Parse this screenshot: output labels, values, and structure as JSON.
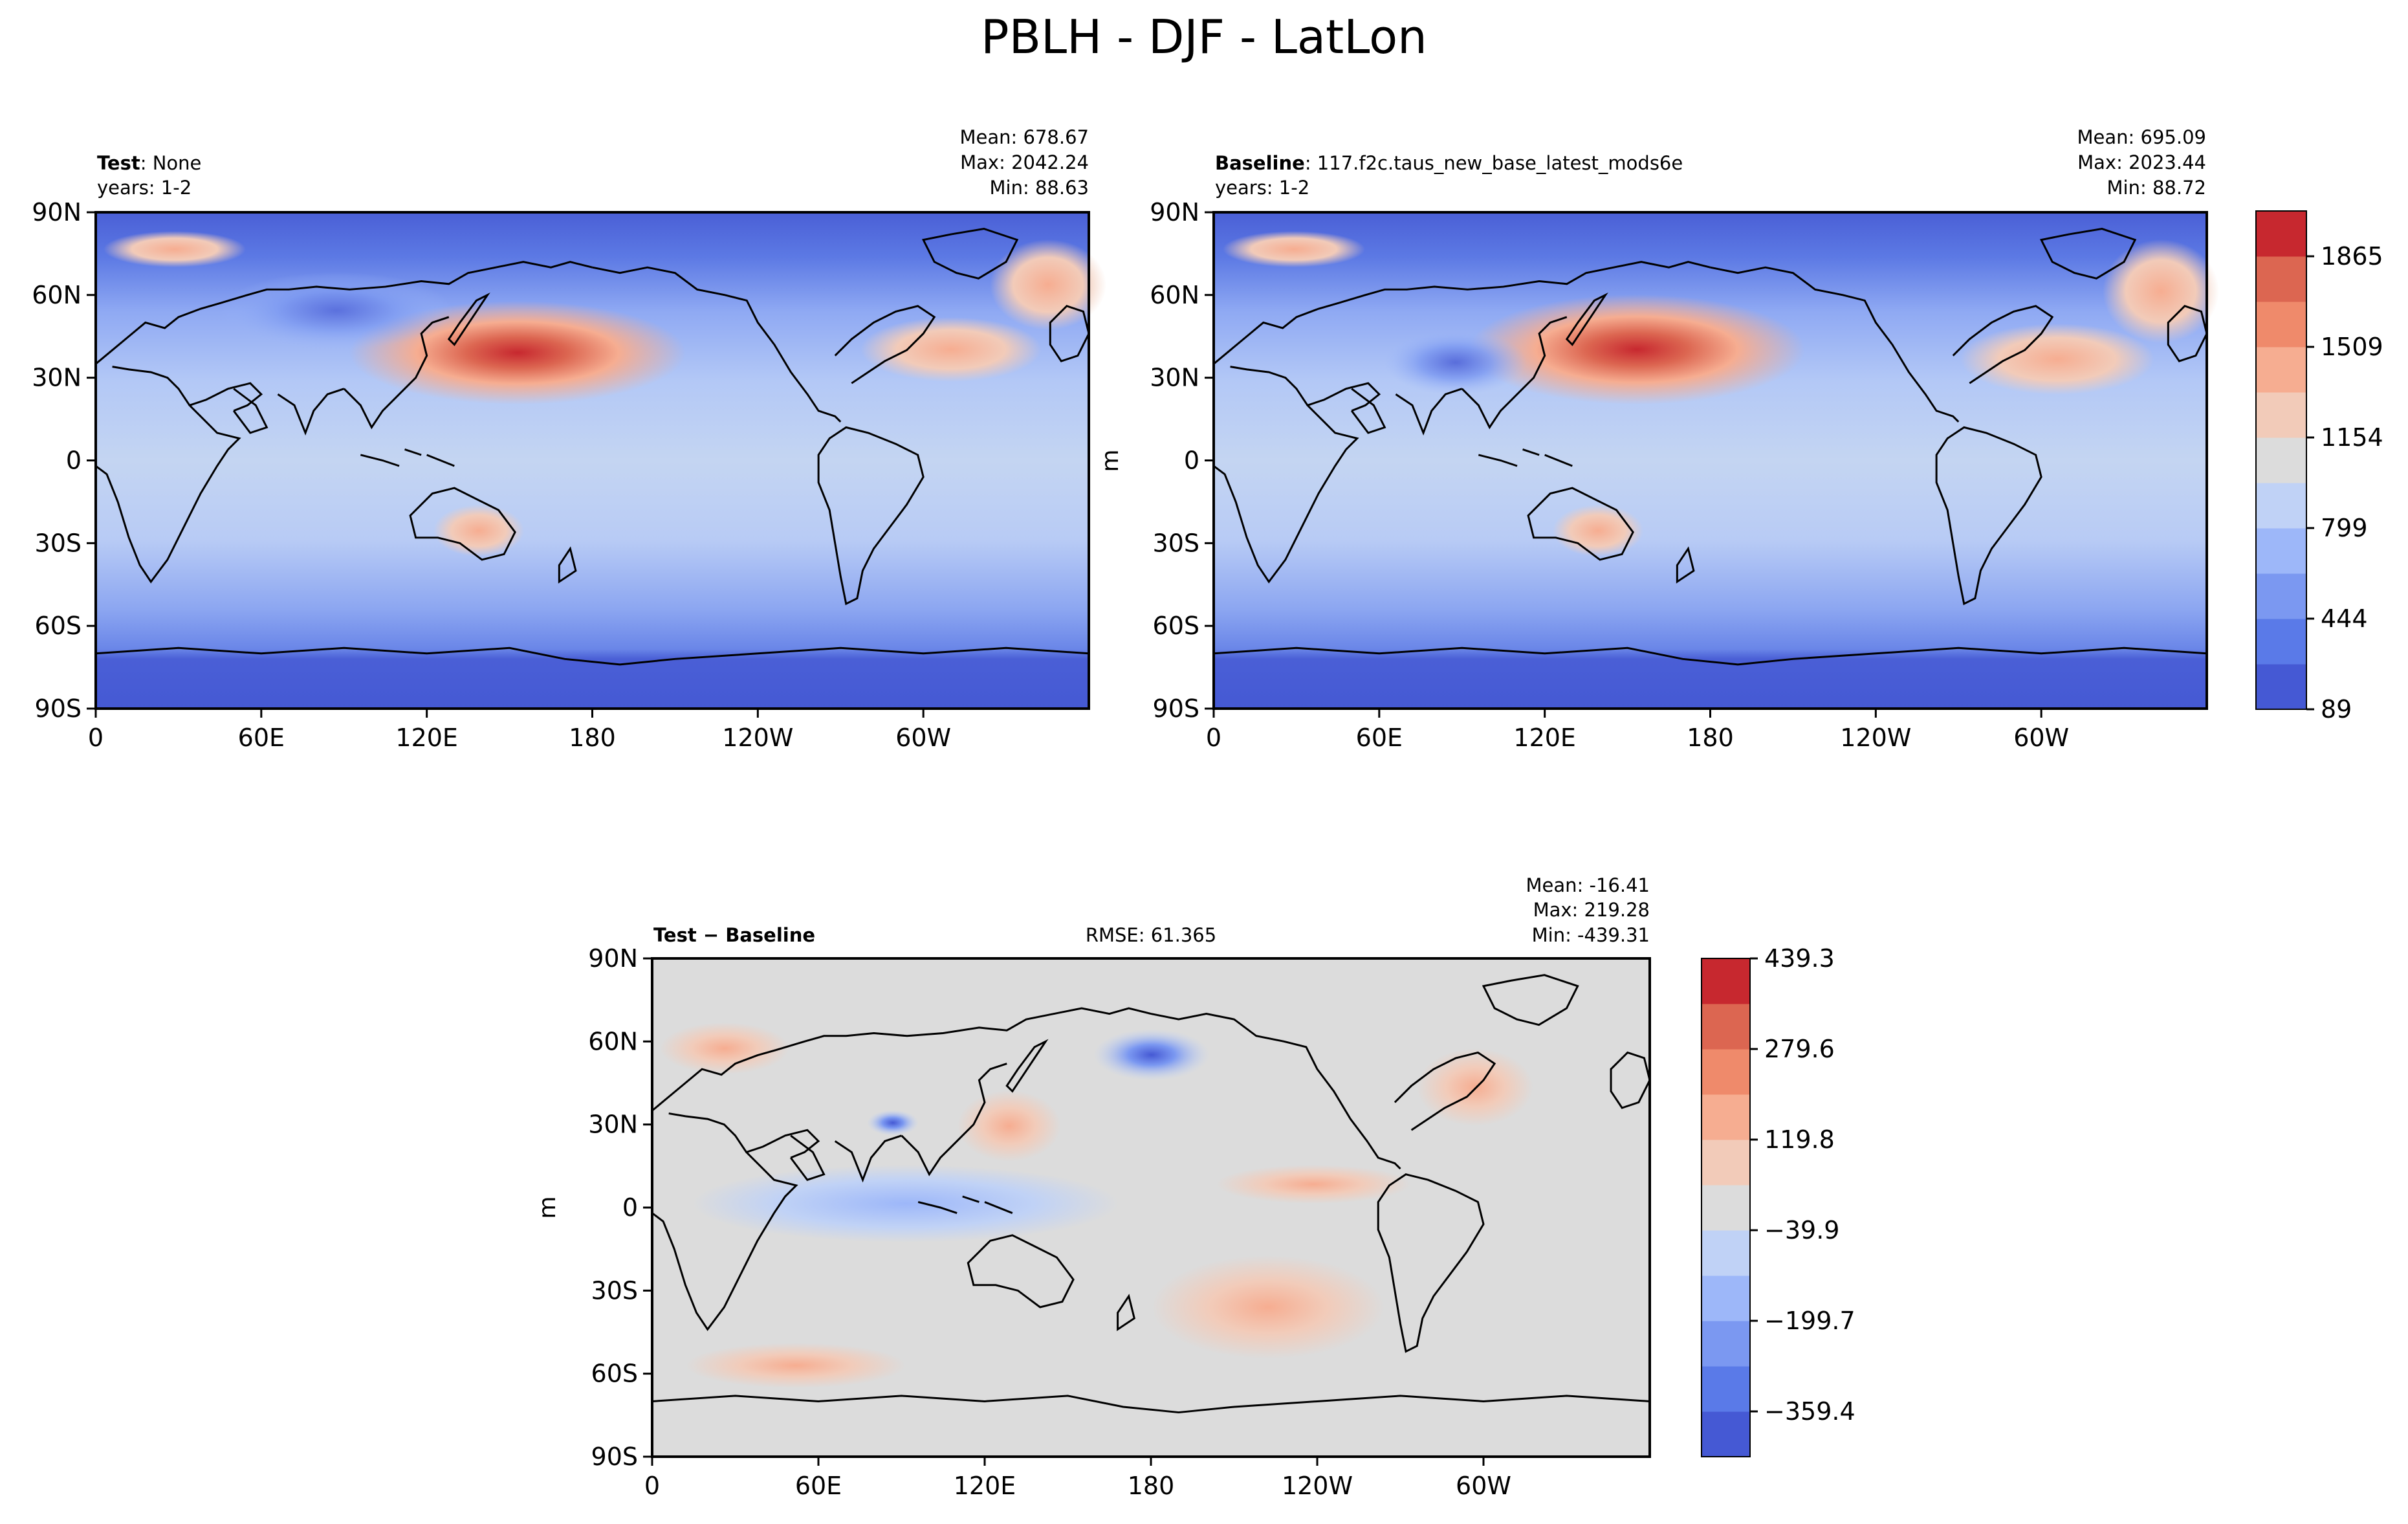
{
  "page_title": "PBLH - DJF - LatLon",
  "colors": {
    "ocean_low": "#4559d4",
    "mid": "#c9d7f0",
    "neutral": "#dcdcdc",
    "warm": "#f4c6b3",
    "hot": "#c7282f",
    "coast": "#000000"
  },
  "colorbar_levels_abs": [
    "#4559d4",
    "#5a7ae8",
    "#7b98f1",
    "#9db7f9",
    "#c0d2f6",
    "#dcdcdc",
    "#f2cbb9",
    "#f6ad91",
    "#ef8a6b",
    "#dc6651",
    "#c7282f"
  ],
  "colorbar_levels_diff": [
    "#4559d4",
    "#5a7ae8",
    "#7b98f1",
    "#9db7f9",
    "#c0d2f6",
    "#dcdcdc",
    "#f2cbb9",
    "#f6ad91",
    "#ef8a6b",
    "#dc6651",
    "#c7282f"
  ],
  "chart_data": [
    {
      "type": "heatmap",
      "panel": "test",
      "title_bold": "Test",
      "title_rest": ": None",
      "years": "years: 1-2",
      "stats": {
        "mean": "Mean: 678.67",
        "max": "Max: 2042.24",
        "min": "Min: 88.63"
      },
      "x_ticks": [
        "0",
        "60E",
        "120E",
        "180",
        "120W",
        "60W"
      ],
      "y_ticks": [
        "90N",
        "60N",
        "30N",
        "0",
        "30S",
        "60S",
        "90S"
      ],
      "xlim": [
        0,
        360
      ],
      "ylim": [
        -90,
        90
      ]
    },
    {
      "type": "heatmap",
      "panel": "baseline",
      "title_bold": "Baseline",
      "title_rest": ": 117.f2c.taus_new_base_latest_mods6e",
      "years": "years: 1-2",
      "stats": {
        "mean": "Mean: 695.09",
        "max": "Max: 2023.44",
        "min": "Min: 88.72"
      },
      "ylabel": "m",
      "x_ticks": [
        "0",
        "60E",
        "120E",
        "180",
        "120W",
        "60W"
      ],
      "y_ticks": [
        "90N",
        "60N",
        "30N",
        "0",
        "30S",
        "60S",
        "90S"
      ],
      "colorbar_ticks": [
        "1865",
        "1509",
        "1154",
        "799",
        "444",
        "89"
      ],
      "xlim": [
        0,
        360
      ],
      "ylim": [
        -90,
        90
      ]
    },
    {
      "type": "heatmap",
      "panel": "difference",
      "title_bold": "Test − Baseline",
      "rmse": "RMSE: 61.365",
      "stats": {
        "mean": "Mean: -16.41",
        "max": "Max: 219.28",
        "min": "Min: -439.31"
      },
      "ylabel": "m",
      "x_ticks": [
        "0",
        "60E",
        "120E",
        "180",
        "120W",
        "60W"
      ],
      "y_ticks": [
        "90N",
        "60N",
        "30N",
        "0",
        "30S",
        "60S",
        "90S"
      ],
      "colorbar_ticks": [
        "439.3",
        "279.6",
        "119.8",
        "−39.9",
        "−199.7",
        "−359.4"
      ],
      "xlim": [
        0,
        360
      ],
      "ylim": [
        -90,
        90
      ]
    }
  ]
}
